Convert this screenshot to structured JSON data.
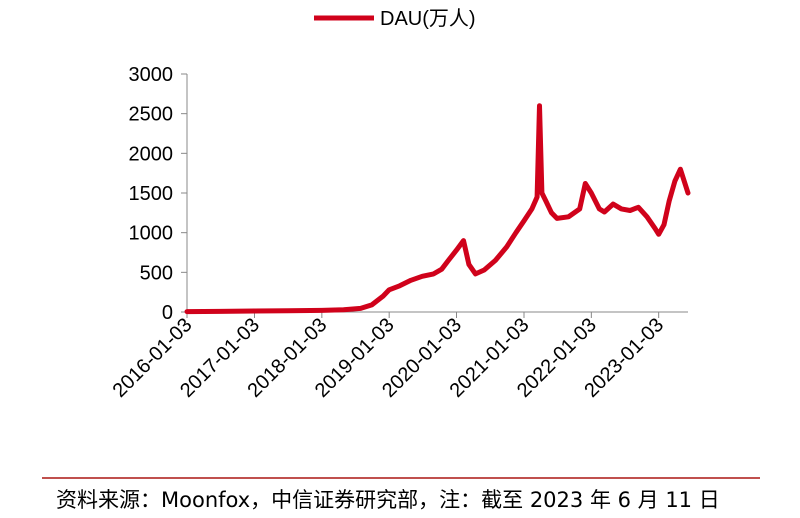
{
  "chart_data": {
    "type": "line",
    "title": "",
    "xlabel": "",
    "ylabel": "",
    "ylim": [
      0,
      3000
    ],
    "yticks": [
      0,
      500,
      1000,
      1500,
      2000,
      2500,
      3000
    ],
    "ytick_labels": [
      "0",
      "500",
      "1000",
      "1500",
      "2000",
      "2500",
      "3000"
    ],
    "xlim": [
      "2016-01-03",
      "2023-06-11"
    ],
    "xticks": [
      "2016-01-03",
      "2017-01-03",
      "2018-01-03",
      "2019-01-03",
      "2020-01-03",
      "2021-01-03",
      "2022-01-03",
      "2023-01-03"
    ],
    "legend_position": "top-center",
    "grid": false,
    "series": [
      {
        "name": "DAU(万人)",
        "color": "#d0021b",
        "x": [
          "2016-01-03",
          "2016-07-01",
          "2017-01-03",
          "2017-07-01",
          "2018-01-03",
          "2018-05-01",
          "2018-08-01",
          "2018-10-01",
          "2018-12-01",
          "2019-01-03",
          "2019-03-01",
          "2019-05-01",
          "2019-07-01",
          "2019-09-01",
          "2019-10-15",
          "2019-11-20",
          "2020-01-03",
          "2020-02-10",
          "2020-03-10",
          "2020-04-15",
          "2020-06-01",
          "2020-08-01",
          "2020-10-01",
          "2020-11-20",
          "2021-01-03",
          "2021-02-15",
          "2021-03-15",
          "2021-03-28",
          "2021-04-10",
          "2021-05-01",
          "2021-06-01",
          "2021-07-01",
          "2021-09-01",
          "2021-11-01",
          "2021-12-01",
          "2022-01-03",
          "2022-02-15",
          "2022-03-15",
          "2022-05-01",
          "2022-06-15",
          "2022-08-01",
          "2022-09-15",
          "2022-11-01",
          "2022-12-15",
          "2023-01-03",
          "2023-02-01",
          "2023-03-01",
          "2023-04-01",
          "2023-05-01",
          "2023-06-11"
        ],
        "y": [
          5,
          8,
          12,
          15,
          20,
          28,
          45,
          90,
          200,
          280,
          330,
          400,
          450,
          480,
          540,
          650,
          780,
          900,
          600,
          480,
          530,
          650,
          820,
          1000,
          1150,
          1300,
          1450,
          2600,
          1500,
          1400,
          1250,
          1180,
          1200,
          1300,
          1620,
          1500,
          1300,
          1260,
          1360,
          1300,
          1280,
          1320,
          1200,
          1050,
          980,
          1100,
          1400,
          1650,
          1800,
          1500
        ]
      }
    ]
  },
  "source_text": "资料来源：Moonfox，中信证券研究部，注：截至 2023 年 6 月 11 日"
}
